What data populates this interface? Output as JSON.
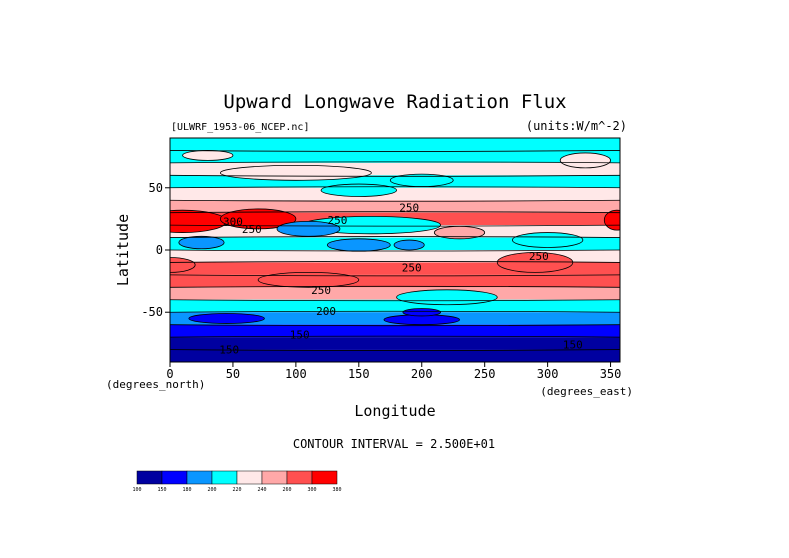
{
  "chart_data": {
    "type": "heatmap",
    "title": "Upward Longwave Radiation Flux",
    "subtitle_left": "[ULWRF_1953-06_NCEP.nc]",
    "subtitle_right": "(units:W/m^-2)",
    "xlabel": "Longitude",
    "ylabel": "Latitude",
    "x_unit_label": "(degrees_east)",
    "y_unit_label": "(degrees_north)",
    "xlim": [
      0,
      357.5
    ],
    "ylim": [
      -90,
      90
    ],
    "x_ticks": [
      0,
      50,
      100,
      150,
      200,
      250,
      300,
      350
    ],
    "y_ticks": [
      50,
      0,
      -50
    ],
    "contour_interval_text": "CONTOUR INTERVAL = 2.500E+01",
    "contour_labels": [
      {
        "text": "300",
        "lon": 50,
        "lat": 23
      },
      {
        "text": "250",
        "lon": 65,
        "lat": 17
      },
      {
        "text": "250",
        "lon": 133,
        "lat": 24
      },
      {
        "text": "250",
        "lon": 190,
        "lat": 34
      },
      {
        "text": "250",
        "lon": 192,
        "lat": -14
      },
      {
        "text": "250",
        "lon": 293,
        "lat": -5
      },
      {
        "text": "250",
        "lon": 120,
        "lat": -32
      },
      {
        "text": "200",
        "lon": 124,
        "lat": -49
      },
      {
        "text": "150",
        "lon": 103,
        "lat": -68
      },
      {
        "text": "150",
        "lon": 47,
        "lat": -80
      },
      {
        "text": "150",
        "lon": 320,
        "lat": -76
      }
    ],
    "colorbar": {
      "levels": [
        "100",
        "150",
        "180",
        "200",
        "220",
        "240",
        "260",
        "300",
        "380"
      ],
      "colors": [
        "#0000a0",
        "#0000ff",
        "#0a96ff",
        "#00ffff",
        "#ffe8e8",
        "#ffa8a8",
        "#ff5050",
        "#ff0000"
      ]
    },
    "field": {
      "lat_bands": [
        {
          "lat_top": 90,
          "lat_bottom": 80,
          "value": 215
        },
        {
          "lat_top": 80,
          "lat_bottom": 70,
          "value": 208
        },
        {
          "lat_top": 70,
          "lat_bottom": 60,
          "value": 230
        },
        {
          "lat_top": 60,
          "lat_bottom": 50,
          "value": 215
        },
        {
          "lat_top": 50,
          "lat_bottom": 40,
          "value": 228
        },
        {
          "lat_top": 40,
          "lat_bottom": 30,
          "value": 250
        },
        {
          "lat_top": 30,
          "lat_bottom": 20,
          "value": 262
        },
        {
          "lat_top": 20,
          "lat_bottom": 10,
          "value": 232
        },
        {
          "lat_top": 10,
          "lat_bottom": 0,
          "value": 210
        },
        {
          "lat_top": 0,
          "lat_bottom": -10,
          "value": 222
        },
        {
          "lat_top": -10,
          "lat_bottom": -20,
          "value": 262
        },
        {
          "lat_top": -20,
          "lat_bottom": -30,
          "value": 266
        },
        {
          "lat_top": -30,
          "lat_bottom": -40,
          "value": 242
        },
        {
          "lat_top": -40,
          "lat_bottom": -50,
          "value": 212
        },
        {
          "lat_top": -50,
          "lat_bottom": -60,
          "value": 190
        },
        {
          "lat_top": -60,
          "lat_bottom": -70,
          "value": 160
        },
        {
          "lat_top": -70,
          "lat_bottom": -80,
          "value": 140
        },
        {
          "lat_top": -80,
          "lat_bottom": -90,
          "value": 130
        }
      ],
      "anomalies": [
        {
          "lon": 10,
          "lat": 23,
          "r_lon": 35,
          "r_lat": 9,
          "value": 305
        },
        {
          "lon": 70,
          "lat": 25,
          "r_lon": 30,
          "r_lat": 8,
          "value": 300
        },
        {
          "lon": 355,
          "lat": 24,
          "r_lon": 10,
          "r_lat": 8,
          "value": 300
        },
        {
          "lon": 160,
          "lat": 20,
          "r_lon": 55,
          "r_lat": 7,
          "value": 200
        },
        {
          "lon": 110,
          "lat": 17,
          "r_lon": 25,
          "r_lat": 6,
          "value": 195
        },
        {
          "lon": 25,
          "lat": 6,
          "r_lon": 18,
          "r_lat": 5,
          "value": 195
        },
        {
          "lon": 150,
          "lat": 4,
          "r_lon": 25,
          "r_lat": 5,
          "value": 195
        },
        {
          "lon": 190,
          "lat": 4,
          "r_lon": 12,
          "r_lat": 4,
          "value": 185
        },
        {
          "lon": 300,
          "lat": 8,
          "r_lon": 28,
          "r_lat": 6,
          "value": 205
        },
        {
          "lon": 230,
          "lat": 14,
          "r_lon": 20,
          "r_lat": 5,
          "value": 240
        },
        {
          "lon": 150,
          "lat": 48,
          "r_lon": 30,
          "r_lat": 5,
          "value": 210
        },
        {
          "lon": 200,
          "lat": 56,
          "r_lon": 25,
          "r_lat": 5,
          "value": 205
        },
        {
          "lon": 100,
          "lat": 62,
          "r_lon": 60,
          "r_lat": 6,
          "value": 235
        },
        {
          "lon": 30,
          "lat": 76,
          "r_lon": 20,
          "r_lat": 4,
          "value": 230
        },
        {
          "lon": 330,
          "lat": 72,
          "r_lon": 20,
          "r_lat": 6,
          "value": 228
        },
        {
          "lon": 220,
          "lat": -38,
          "r_lon": 40,
          "r_lat": 6,
          "value": 210
        },
        {
          "lon": 110,
          "lat": -24,
          "r_lon": 40,
          "r_lat": 6,
          "value": 275
        },
        {
          "lon": 290,
          "lat": -10,
          "r_lon": 30,
          "r_lat": 8,
          "value": 275
        },
        {
          "lon": 0,
          "lat": -12,
          "r_lon": 20,
          "r_lat": 6,
          "value": 275
        },
        {
          "lon": 45,
          "lat": -55,
          "r_lon": 30,
          "r_lat": 4,
          "value": 170
        },
        {
          "lon": 200,
          "lat": -56,
          "r_lon": 30,
          "r_lat": 4,
          "value": 170
        },
        {
          "lon": 200,
          "lat": -50,
          "r_lon": 15,
          "r_lat": 3,
          "value": 170
        }
      ]
    }
  }
}
